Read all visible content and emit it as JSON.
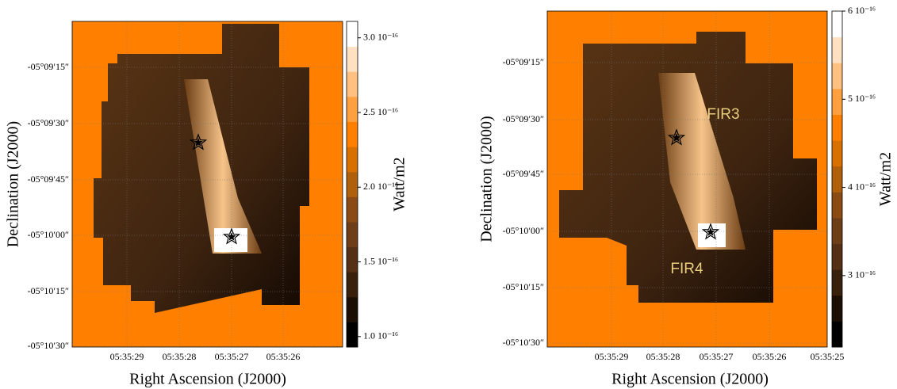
{
  "panels": [
    {
      "xlabel": "Right Ascension (J2000)",
      "ylabel": "Declination (J2000)",
      "colorbar_label": "Watt/m2",
      "xticks": [
        "05:35:29",
        "05:35:28",
        "05:35:27",
        "05:35:26"
      ],
      "yticks": [
        "-05°09′15″",
        "-05°09′30″",
        "-05°09′45″",
        "-05°10′00″",
        "-05°10′15″",
        "-05°10′30″"
      ],
      "clim": [
        9.3e-17,
        3.11e-16
      ],
      "cticks": [
        {
          "value": 3e-16,
          "label": "3.0 10⁻¹⁶"
        },
        {
          "value": 2.5e-16,
          "label": "2.5 10⁻¹⁶"
        },
        {
          "value": 2e-16,
          "label": "2.0 10⁻¹⁶"
        },
        {
          "value": 1.5e-16,
          "label": "1.5 10⁻¹⁶"
        },
        {
          "value": 1e-16,
          "label": "1.0 10⁻¹⁶"
        }
      ]
    },
    {
      "xlabel": "Right Ascension (J2000)",
      "ylabel": "Declination (J2000)",
      "colorbar_label": "Watt/m2",
      "xticks": [
        "05:35:29",
        "05:35:28",
        "05:35:27",
        "05:35:26",
        "05:35:25"
      ],
      "yticks": [
        "-05°09′15″",
        "-05°09′30″",
        "-05°09′45″",
        "-05°10′00″",
        "-05°10′15″",
        "-05°10′30″"
      ],
      "clim": [
        2.19e-16,
        6e-16
      ],
      "cticks": [
        {
          "value": 6e-16,
          "label": "6 10⁻¹⁶"
        },
        {
          "value": 5e-16,
          "label": "5 10⁻¹⁶"
        },
        {
          "value": 4e-16,
          "label": "4 10⁻¹⁶"
        },
        {
          "value": 3e-16,
          "label": "3 10⁻¹⁶"
        }
      ],
      "annotations": [
        "FIR3",
        "FIR4"
      ]
    }
  ]
}
